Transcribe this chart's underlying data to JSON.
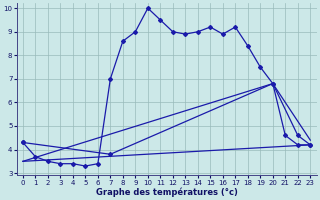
{
  "xlabel": "Graphe des températures (°c)",
  "bg_color": "#cce8e8",
  "line_color": "#1a1aaa",
  "grid_color": "#99bbbb",
  "xlim": [
    -0.5,
    23.5
  ],
  "ylim": [
    2.9,
    10.2
  ],
  "xticks": [
    0,
    1,
    2,
    3,
    4,
    5,
    6,
    7,
    8,
    9,
    10,
    11,
    12,
    13,
    14,
    15,
    16,
    17,
    18,
    19,
    20,
    21,
    22,
    23
  ],
  "yticks": [
    3,
    4,
    5,
    6,
    7,
    8,
    9,
    10
  ],
  "curve1_x": [
    0,
    1,
    2,
    3,
    4,
    5,
    6,
    7,
    8,
    9,
    10,
    11,
    12,
    13,
    14,
    15,
    16,
    17,
    18,
    19,
    20,
    21,
    22,
    23
  ],
  "curve1_y": [
    4.3,
    3.7,
    3.5,
    3.4,
    3.4,
    3.3,
    3.4,
    7.0,
    8.6,
    9.0,
    10.0,
    9.5,
    9.0,
    8.9,
    9.0,
    9.2,
    8.9,
    9.2,
    8.4,
    7.5,
    6.8,
    4.6,
    4.2,
    4.2
  ],
  "curve2_x": [
    0,
    7,
    20,
    22,
    23
  ],
  "curve2_y": [
    4.3,
    3.8,
    6.8,
    4.6,
    4.2
  ],
  "line1_x": [
    0,
    23
  ],
  "line1_y": [
    3.5,
    4.2
  ],
  "line2_x": [
    0,
    20,
    23
  ],
  "line2_y": [
    3.5,
    6.8,
    4.4
  ]
}
